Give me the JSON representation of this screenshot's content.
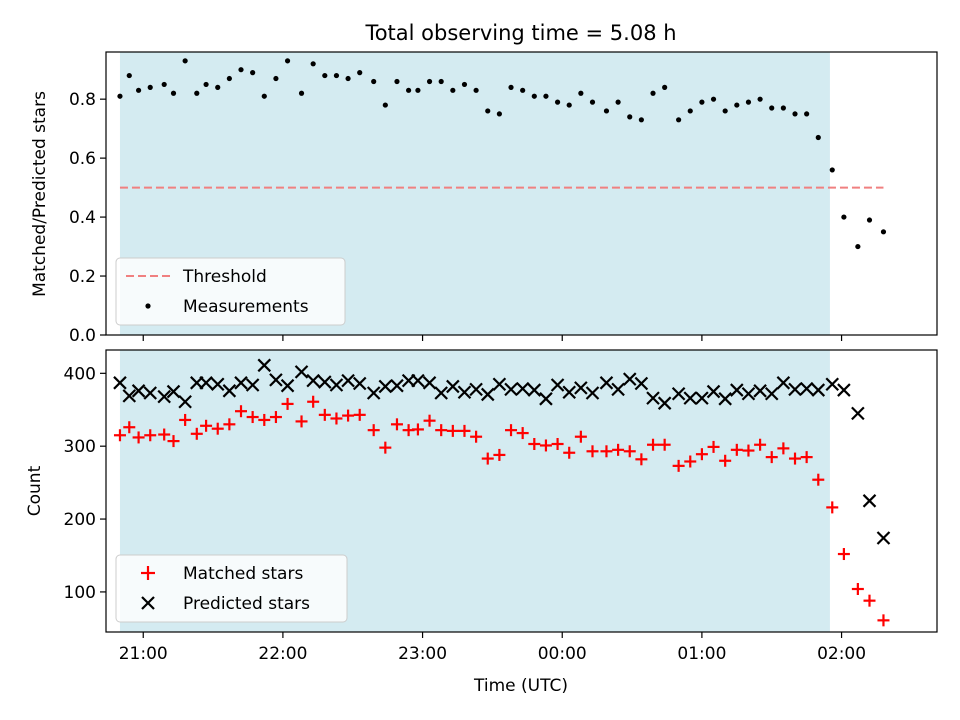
{
  "chart_data": [
    {
      "type": "scatter",
      "title": "Total observing time = 5.08 h",
      "xlabel": "",
      "ylabel": "Matched/Predicted stars",
      "ylim": [
        0,
        0.96
      ],
      "yticks": [
        0.0,
        0.2,
        0.4,
        0.6,
        0.8
      ],
      "ytick_labels": [
        "0.0",
        "0.2",
        "0.4",
        "0.6",
        "0.8"
      ],
      "xlim": [
        "20:44",
        "02:41"
      ],
      "shaded_interval": [
        "20:50",
        "01:55"
      ],
      "shaded_color": "#d4ebf1",
      "threshold": {
        "name": "Threshold",
        "value": 0.5,
        "color": "#f08080"
      },
      "legend": {
        "position": "lower-left",
        "entries": [
          "Threshold",
          "Measurements"
        ]
      },
      "series": [
        {
          "name": "Measurements",
          "color": "#000000",
          "marker": "dot",
          "points": [
            [
              "20:50",
              0.81
            ],
            [
              "20:54",
              0.88
            ],
            [
              "20:58",
              0.83
            ],
            [
              "21:03",
              0.84
            ],
            [
              "21:09",
              0.85
            ],
            [
              "21:13",
              0.82
            ],
            [
              "21:18",
              0.93
            ],
            [
              "21:23",
              0.82
            ],
            [
              "21:27",
              0.85
            ],
            [
              "21:32",
              0.84
            ],
            [
              "21:37",
              0.87
            ],
            [
              "21:42",
              0.9
            ],
            [
              "21:47",
              0.89
            ],
            [
              "21:52",
              0.81
            ],
            [
              "21:57",
              0.87
            ],
            [
              "22:02",
              0.93
            ],
            [
              "22:08",
              0.82
            ],
            [
              "22:13",
              0.92
            ],
            [
              "22:18",
              0.88
            ],
            [
              "22:23",
              0.88
            ],
            [
              "22:28",
              0.87
            ],
            [
              "22:33",
              0.89
            ],
            [
              "22:39",
              0.86
            ],
            [
              "22:44",
              0.78
            ],
            [
              "22:49",
              0.86
            ],
            [
              "22:54",
              0.83
            ],
            [
              "22:58",
              0.83
            ],
            [
              "23:03",
              0.86
            ],
            [
              "23:08",
              0.86
            ],
            [
              "23:13",
              0.83
            ],
            [
              "23:18",
              0.85
            ],
            [
              "23:23",
              0.83
            ],
            [
              "23:28",
              0.76
            ],
            [
              "23:33",
              0.75
            ],
            [
              "23:38",
              0.84
            ],
            [
              "23:43",
              0.83
            ],
            [
              "23:48",
              0.81
            ],
            [
              "23:53",
              0.81
            ],
            [
              "23:58",
              0.79
            ],
            [
              "00:03",
              0.78
            ],
            [
              "00:08",
              0.82
            ],
            [
              "00:13",
              0.79
            ],
            [
              "00:19",
              0.76
            ],
            [
              "00:24",
              0.79
            ],
            [
              "00:29",
              0.74
            ],
            [
              "00:34",
              0.73
            ],
            [
              "00:39",
              0.82
            ],
            [
              "00:44",
              0.84
            ],
            [
              "00:50",
              0.73
            ],
            [
              "00:55",
              0.76
            ],
            [
              "01:00",
              0.79
            ],
            [
              "01:05",
              0.8
            ],
            [
              "01:10",
              0.76
            ],
            [
              "01:15",
              0.78
            ],
            [
              "01:20",
              0.79
            ],
            [
              "01:25",
              0.8
            ],
            [
              "01:30",
              0.77
            ],
            [
              "01:35",
              0.77
            ],
            [
              "01:40",
              0.75
            ],
            [
              "01:45",
              0.75
            ],
            [
              "01:50",
              0.67
            ],
            [
              "01:56",
              0.56
            ],
            [
              "02:01",
              0.4
            ],
            [
              "02:07",
              0.3
            ],
            [
              "02:12",
              0.39
            ],
            [
              "02:18",
              0.35
            ]
          ]
        }
      ]
    },
    {
      "type": "scatter",
      "title": "",
      "xlabel": "Time (UTC)",
      "ylabel": "Count",
      "ylim": [
        45,
        432
      ],
      "yticks": [
        100,
        200,
        300,
        400
      ],
      "ytick_labels": [
        "100",
        "200",
        "300",
        "400"
      ],
      "xlim": [
        "20:44",
        "02:41"
      ],
      "xticks": [
        "21:00",
        "22:00",
        "23:00",
        "00:00",
        "01:00",
        "02:00"
      ],
      "xtick_labels": [
        "21:00",
        "22:00",
        "23:00",
        "00:00",
        "01:00",
        "02:00"
      ],
      "shaded_interval": [
        "20:50",
        "01:55"
      ],
      "shaded_color": "#d4ebf1",
      "legend": {
        "position": "lower-left",
        "entries": [
          "Matched stars",
          "Predicted stars"
        ]
      },
      "series": [
        {
          "name": "Matched stars",
          "color": "#ff0000",
          "marker": "plus",
          "points": [
            [
              "20:50",
              315
            ],
            [
              "20:54",
              326
            ],
            [
              "20:58",
              312
            ],
            [
              "21:03",
              315
            ],
            [
              "21:09",
              316
            ],
            [
              "21:13",
              307
            ],
            [
              "21:18",
              336
            ],
            [
              "21:23",
              317
            ],
            [
              "21:27",
              328
            ],
            [
              "21:32",
              324
            ],
            [
              "21:37",
              330
            ],
            [
              "21:42",
              348
            ],
            [
              "21:47",
              340
            ],
            [
              "21:52",
              336
            ],
            [
              "21:57",
              340
            ],
            [
              "22:02",
              358
            ],
            [
              "22:08",
              334
            ],
            [
              "22:13",
              361
            ],
            [
              "22:18",
              343
            ],
            [
              "22:23",
              338
            ],
            [
              "22:28",
              342
            ],
            [
              "22:33",
              343
            ],
            [
              "22:39",
              322
            ],
            [
              "22:44",
              298
            ],
            [
              "22:49",
              330
            ],
            [
              "22:54",
              322
            ],
            [
              "22:58",
              323
            ],
            [
              "23:03",
              335
            ],
            [
              "23:08",
              322
            ],
            [
              "23:13",
              321
            ],
            [
              "23:18",
              321
            ],
            [
              "23:23",
              313
            ],
            [
              "23:28",
              283
            ],
            [
              "23:33",
              288
            ],
            [
              "23:38",
              322
            ],
            [
              "23:43",
              318
            ],
            [
              "23:48",
              303
            ],
            [
              "23:53",
              301
            ],
            [
              "23:58",
              303
            ],
            [
              "00:03",
              291
            ],
            [
              "00:08",
              313
            ],
            [
              "00:13",
              293
            ],
            [
              "00:19",
              293
            ],
            [
              "00:24",
              295
            ],
            [
              "00:29",
              293
            ],
            [
              "00:34",
              282
            ],
            [
              "00:39",
              302
            ],
            [
              "00:44",
              302
            ],
            [
              "00:50",
              273
            ],
            [
              "00:55",
              279
            ],
            [
              "01:00",
              289
            ],
            [
              "01:05",
              299
            ],
            [
              "01:10",
              280
            ],
            [
              "01:15",
              295
            ],
            [
              "01:20",
              294
            ],
            [
              "01:25",
              302
            ],
            [
              "01:30",
              285
            ],
            [
              "01:35",
              297
            ],
            [
              "01:40",
              283
            ],
            [
              "01:45",
              285
            ],
            [
              "01:50",
              254
            ],
            [
              "01:56",
              216
            ],
            [
              "02:01",
              152
            ],
            [
              "02:07",
              104
            ],
            [
              "02:12",
              88
            ],
            [
              "02:18",
              61
            ]
          ]
        },
        {
          "name": "Predicted stars",
          "color": "#000000",
          "marker": "x",
          "points": [
            [
              "20:50",
              387
            ],
            [
              "20:54",
              369
            ],
            [
              "20:58",
              376
            ],
            [
              "21:03",
              373
            ],
            [
              "21:09",
              368
            ],
            [
              "21:13",
              375
            ],
            [
              "21:18",
              361
            ],
            [
              "21:23",
              387
            ],
            [
              "21:27",
              387
            ],
            [
              "21:32",
              385
            ],
            [
              "21:37",
              376
            ],
            [
              "21:42",
              387
            ],
            [
              "21:47",
              384
            ],
            [
              "21:52",
              411
            ],
            [
              "21:57",
              391
            ],
            [
              "22:02",
              383
            ],
            [
              "22:08",
              402
            ],
            [
              "22:13",
              390
            ],
            [
              "22:18",
              388
            ],
            [
              "22:23",
              384
            ],
            [
              "22:28",
              390
            ],
            [
              "22:33",
              386
            ],
            [
              "22:39",
              373
            ],
            [
              "22:44",
              382
            ],
            [
              "22:49",
              383
            ],
            [
              "22:54",
              390
            ],
            [
              "22:58",
              390
            ],
            [
              "23:03",
              387
            ],
            [
              "23:08",
              373
            ],
            [
              "23:13",
              382
            ],
            [
              "23:18",
              374
            ],
            [
              "23:23",
              378
            ],
            [
              "23:28",
              371
            ],
            [
              "23:33",
              385
            ],
            [
              "23:38",
              378
            ],
            [
              "23:43",
              379
            ],
            [
              "23:48",
              377
            ],
            [
              "23:53",
              365
            ],
            [
              "23:58",
              384
            ],
            [
              "00:03",
              374
            ],
            [
              "00:08",
              380
            ],
            [
              "00:13",
              373
            ],
            [
              "00:19",
              387
            ],
            [
              "00:24",
              378
            ],
            [
              "00:29",
              392
            ],
            [
              "00:34",
              386
            ],
            [
              "00:39",
              366
            ],
            [
              "00:44",
              359
            ],
            [
              "00:50",
              372
            ],
            [
              "00:55",
              366
            ],
            [
              "01:00",
              366
            ],
            [
              "01:05",
              375
            ],
            [
              "01:10",
              365
            ],
            [
              "01:15",
              377
            ],
            [
              "01:20",
              372
            ],
            [
              "01:25",
              376
            ],
            [
              "01:30",
              372
            ],
            [
              "01:35",
              387
            ],
            [
              "01:40",
              378
            ],
            [
              "01:45",
              379
            ],
            [
              "01:50",
              377
            ],
            [
              "01:56",
              385
            ],
            [
              "02:01",
              377
            ],
            [
              "02:07",
              345
            ],
            [
              "02:12",
              225
            ],
            [
              "02:18",
              174
            ]
          ]
        }
      ]
    }
  ]
}
